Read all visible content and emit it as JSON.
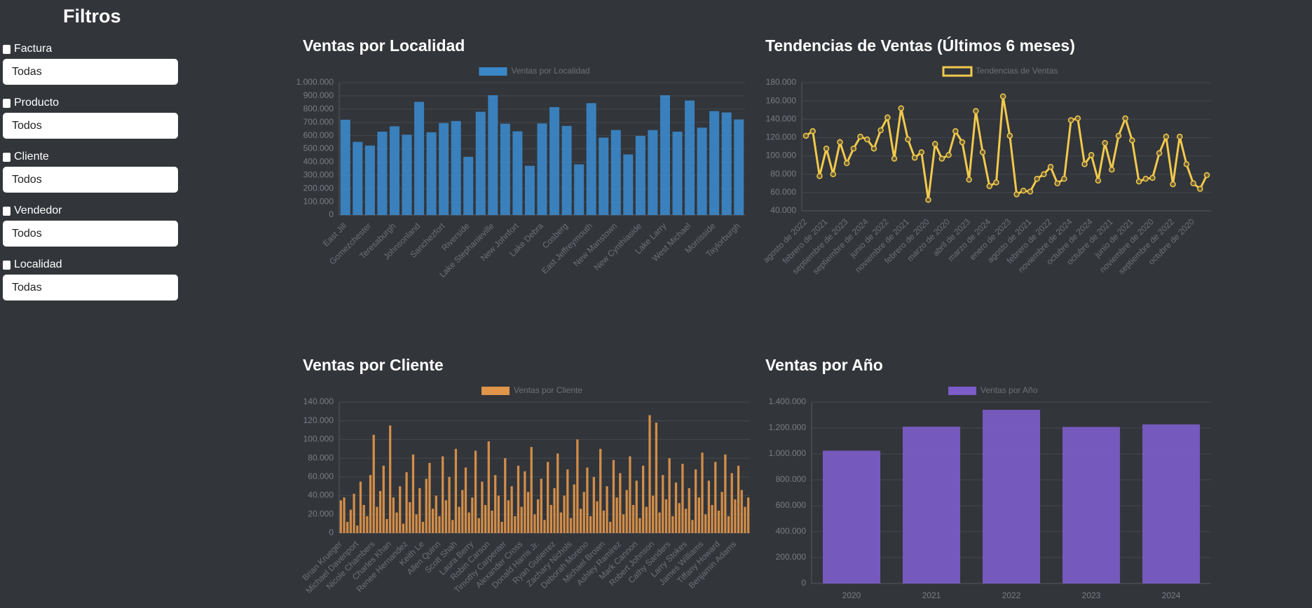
{
  "sidebar": {
    "title": "Filtros",
    "filters": [
      {
        "label": "Factura",
        "value": "Todas"
      },
      {
        "label": "Producto",
        "value": "Todos"
      },
      {
        "label": "Cliente",
        "value": "Todos"
      },
      {
        "label": "Vendedor",
        "value": "Todos"
      },
      {
        "label": "Localidad",
        "value": "Todas"
      }
    ]
  },
  "chart_data": [
    {
      "type": "bar",
      "title": "Ventas por Localidad",
      "categories": [
        "East Jill",
        null,
        "Gomezchester",
        null,
        "Teresaburgh",
        null,
        "Johnsonland",
        null,
        "Sanchezfort",
        null,
        "Riverside",
        null,
        "Lake Stephanieville",
        null,
        "New Johnfort",
        null,
        "Lake Debra",
        null,
        "Cosberg",
        null,
        "East Jeffreymouth",
        null,
        "New Manstown",
        null,
        "New Cynthiaside",
        null,
        "Lake Larry",
        null,
        "West Michael",
        null,
        "Morrisside",
        null,
        "Taylorburgh"
      ],
      "series": [
        {
          "name": "Ventas por Localidad",
          "color": "#3a87c8",
          "values": [
            720000,
            553000,
            525000,
            630000,
            670000,
            607000,
            855000,
            625000,
            695000,
            710000,
            440000,
            780000,
            905000,
            690000,
            632000,
            372000,
            692000,
            815000,
            673000,
            383000,
            845000,
            585000,
            642000,
            458000,
            598000,
            642000,
            905000,
            630000,
            865000,
            660000,
            785000,
            775000,
            722000
          ]
        }
      ],
      "ylim": [
        0,
        1000000
      ],
      "yticks": [
        0,
        {
          "value": 100000,
          "label": "100.000"
        },
        {
          "value": 200000,
          "label": "200.000"
        },
        {
          "value": 300000,
          "label": "300.000"
        },
        {
          "value": 400000,
          "label": "400.000"
        },
        {
          "value": 500000,
          "label": "500.000"
        },
        {
          "value": 600000,
          "label": "600.000"
        },
        {
          "value": 700000,
          "label": "700.000"
        },
        {
          "value": 800000,
          "label": "800.000"
        },
        {
          "value": 900000,
          "label": "900.000"
        },
        {
          "value": 1000000,
          "label": "1.000.000"
        }
      ],
      "grid": true
    },
    {
      "type": "line",
      "title": "Tendencias de Ventas (Últimos 6 meses)",
      "categories": [
        "agosto de 2022",
        null,
        null,
        "febrero de 2021",
        null,
        null,
        "septiembre de 2023",
        null,
        null,
        "septiembre de 2024",
        null,
        null,
        "junio de 2022",
        null,
        null,
        "noviembre de 2021",
        null,
        null,
        "febrero de 2020",
        null,
        null,
        "marzo de 2020",
        null,
        null,
        "abril de 2023",
        null,
        null,
        "marzo de 2024",
        null,
        null,
        "enero de 2023",
        null,
        null,
        "agosto de 2021",
        null,
        null,
        "febrero de 2022",
        null,
        null,
        "noviembre de 2024",
        null,
        null,
        "octubre de 2024",
        null,
        null,
        "octubre de 2021",
        null,
        null,
        "junio de 2021",
        null,
        null,
        "noviembre de 2020",
        null,
        null,
        "septiembre de 2022",
        null,
        null,
        "octubre de 2020",
        null,
        null
      ],
      "series": [
        {
          "name": "Tendencias de Ventas",
          "color": "#f2c94c",
          "values": [
            122000,
            127000,
            78000,
            108000,
            80000,
            115000,
            92000,
            108000,
            121000,
            118000,
            108000,
            128000,
            142000,
            97000,
            152000,
            118000,
            98000,
            104000,
            52000,
            113000,
            97000,
            101000,
            127000,
            115000,
            74000,
            149000,
            104000,
            67000,
            71000,
            165000,
            122000,
            58000,
            62000,
            61000,
            75000,
            80000,
            88000,
            70000,
            75000,
            139000,
            141000,
            91000,
            101000,
            73000,
            114000,
            85000,
            122000,
            141000,
            117000,
            72000,
            75000,
            76000,
            103000,
            121000,
            69000,
            121000,
            91000,
            70000,
            64000,
            79000
          ]
        }
      ],
      "ylim": [
        40000,
        180000
      ],
      "yticks": [
        {
          "value": 40000,
          "label": "40.000"
        },
        {
          "value": 60000,
          "label": "60.000"
        },
        {
          "value": 80000,
          "label": "80.000"
        },
        {
          "value": 100000,
          "label": "100.000"
        },
        {
          "value": 120000,
          "label": "120.000"
        },
        {
          "value": 140000,
          "label": "140.000"
        },
        {
          "value": 160000,
          "label": "160.000"
        },
        {
          "value": 180000,
          "label": "180.000"
        }
      ],
      "grid": true
    },
    {
      "type": "bar",
      "title": "Ventas por Cliente",
      "categories": [
        "Brian Krueger",
        null,
        null,
        null,
        null,
        "Michael Davenport",
        null,
        null,
        null,
        null,
        "Nicole Chambers",
        null,
        null,
        null,
        null,
        "Charles Khan",
        null,
        null,
        null,
        null,
        "Renee Hernandez",
        null,
        null,
        null,
        null,
        "Keith Le",
        null,
        null,
        null,
        null,
        "Allen Quinn",
        null,
        null,
        null,
        null,
        "Scott Shah",
        null,
        null,
        null,
        null,
        "Laura Berry",
        null,
        null,
        null,
        null,
        "Robin Carson",
        null,
        null,
        null,
        null,
        "Timothy Carpenter",
        null,
        null,
        null,
        null,
        "Alexander Cross",
        null,
        null,
        null,
        null,
        "Donald Harris Jr.",
        null,
        null,
        null,
        null,
        "Ryan Gutierrez",
        null,
        null,
        null,
        null,
        "Zachary Nichols",
        null,
        null,
        null,
        null,
        "Deborah Moreno",
        null,
        null,
        null,
        null,
        "Michael Brown",
        null,
        null,
        null,
        null,
        "Ashley Ramirez",
        null,
        null,
        null,
        null,
        "Mark Cannon",
        null,
        null,
        null,
        null,
        "Robert Johnson",
        null,
        null,
        null,
        null,
        "Cathy Sanders",
        null,
        null,
        null,
        null,
        "Larry Stokes",
        null,
        null,
        null,
        null,
        "James Williams",
        null,
        null,
        null,
        null,
        "Tiffany Howard",
        null,
        null,
        null,
        null,
        "Benjamin Adams",
        null,
        null,
        null,
        null
      ],
      "series": [
        {
          "name": "Ventas por Cliente",
          "color": "#e0954a",
          "values": [
            35000,
            38000,
            12000,
            25000,
            42000,
            8000,
            55000,
            30000,
            18000,
            62000,
            105000,
            28000,
            45000,
            72000,
            15000,
            115000,
            38000,
            22000,
            50000,
            10000,
            65000,
            33000,
            84000,
            20000,
            48000,
            12000,
            58000,
            75000,
            26000,
            40000,
            18000,
            82000,
            35000,
            60000,
            14000,
            90000,
            28000,
            46000,
            70000,
            22000,
            38000,
            88000,
            16000,
            55000,
            30000,
            98000,
            24000,
            62000,
            40000,
            12000,
            80000,
            35000,
            50000,
            18000,
            72000,
            28000,
            66000,
            44000,
            92000,
            20000,
            36000,
            58000,
            14000,
            76000,
            30000,
            48000,
            85000,
            22000,
            40000,
            68000,
            16000,
            52000,
            100000,
            26000,
            44000,
            70000,
            18000,
            60000,
            34000,
            90000,
            24000,
            50000,
            12000,
            78000,
            38000,
            64000,
            20000,
            46000,
            82000,
            30000,
            56000,
            16000,
            72000,
            28000,
            126000,
            40000,
            118000,
            22000,
            62000,
            36000,
            80000,
            18000,
            54000,
            32000,
            74000,
            26000,
            48000,
            14000,
            68000,
            38000,
            86000,
            20000,
            56000,
            30000,
            76000,
            24000,
            44000,
            84000,
            18000,
            64000,
            36000,
            72000,
            46000,
            28000,
            38000
          ]
        }
      ],
      "ylim": [
        0,
        140000
      ],
      "yticks": [
        0,
        {
          "value": 20000,
          "label": "20.000"
        },
        {
          "value": 40000,
          "label": "40.000"
        },
        {
          "value": 60000,
          "label": "60.000"
        },
        {
          "value": 80000,
          "label": "80.000"
        },
        {
          "value": 100000,
          "label": "100.000"
        },
        {
          "value": 120000,
          "label": "120.000"
        },
        {
          "value": 140000,
          "label": "140.000"
        }
      ],
      "grid": true
    },
    {
      "type": "bar",
      "title": "Ventas por Año",
      "categories": [
        "2020",
        "2021",
        "2022",
        "2023",
        "2024"
      ],
      "series": [
        {
          "name": "Ventas por Año",
          "color": "#7b5cc8",
          "values": [
            1025000,
            1210000,
            1340000,
            1208000,
            1228000
          ]
        }
      ],
      "ylim": [
        0,
        1400000
      ],
      "yticks": [
        0,
        {
          "value": 200000,
          "label": "200.000"
        },
        {
          "value": 400000,
          "label": "400.000"
        },
        {
          "value": 600000,
          "label": "600.000"
        },
        {
          "value": 800000,
          "label": "800.000"
        },
        {
          "value": 1000000,
          "label": "1.000.000"
        },
        {
          "value": 1200000,
          "label": "1.200.000"
        },
        {
          "value": 1400000,
          "label": "1.400.000"
        }
      ],
      "grid": true
    }
  ]
}
